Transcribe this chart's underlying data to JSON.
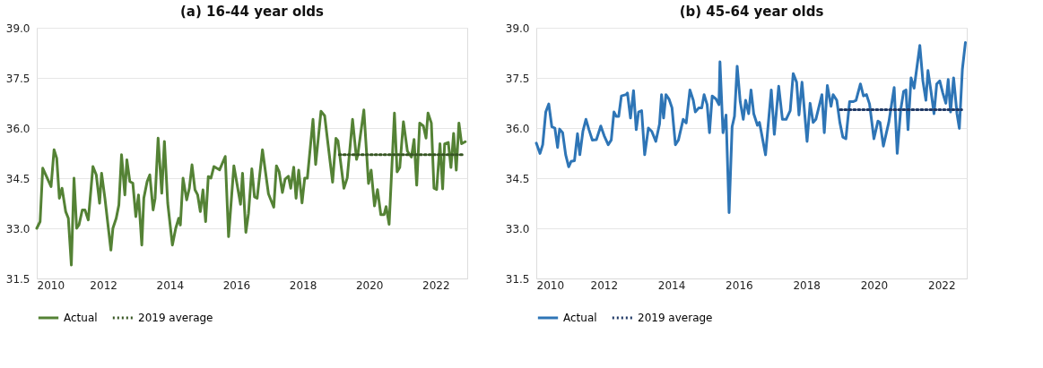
{
  "chart_data": [
    {
      "type": "line",
      "title": "(a) 16-44 year olds",
      "xlim": [
        2010,
        2022.95
      ],
      "xticks": [
        2010,
        2012,
        2014,
        2016,
        2018,
        2020,
        2022
      ],
      "ylim": [
        31.5,
        39.0
      ],
      "yticks": [
        {
          "value": 31.5,
          "label": "31.5"
        },
        {
          "value": 33.0,
          "label": "33.0"
        },
        {
          "value": 34.5,
          "label": "34.5"
        },
        {
          "value": 36.0,
          "label": "36.0"
        },
        {
          "value": 37.5,
          "label": "37.5"
        },
        {
          "value": 39.0,
          "label": "39.0"
        }
      ],
      "grid": "y",
      "legend": "bottom",
      "marker": "none",
      "series": [
        {
          "name": "Actual",
          "color": "#548235",
          "line_style": "solid",
          "x": [
            2010.0,
            2010.1,
            2010.18,
            2010.43,
            2010.52,
            2010.6,
            2010.68,
            2010.76,
            2010.87,
            2010.95,
            2011.04,
            2011.12,
            2011.2,
            2011.27,
            2011.37,
            2011.45,
            2011.55,
            2011.69,
            2011.79,
            2011.89,
            2011.95,
            2012.05,
            2012.23,
            2012.29,
            2012.39,
            2012.47,
            2012.55,
            2012.65,
            2012.71,
            2012.8,
            2012.89,
            2012.98,
            2013.06,
            2013.16,
            2013.22,
            2013.32,
            2013.4,
            2013.5,
            2013.56,
            2013.65,
            2013.76,
            2013.84,
            2013.94,
            2014.08,
            2014.18,
            2014.27,
            2014.32,
            2014.4,
            2014.51,
            2014.59,
            2014.67,
            2014.76,
            2014.84,
            2014.92,
            2015.0,
            2015.08,
            2015.16,
            2015.24,
            2015.33,
            2015.41,
            2015.5,
            2015.67,
            2015.77,
            2015.93,
            2016.13,
            2016.19,
            2016.29,
            2016.37,
            2016.47,
            2016.55,
            2016.63,
            2016.79,
            2016.97,
            2017.13,
            2017.21,
            2017.29,
            2017.39,
            2017.47,
            2017.57,
            2017.64,
            2017.73,
            2017.8,
            2017.88,
            2017.98,
            2018.06,
            2018.14,
            2018.31,
            2018.39,
            2018.55,
            2018.66,
            2018.76,
            2018.9,
            2019.0,
            2019.06,
            2019.24,
            2019.34,
            2019.5,
            2019.62,
            2019.66,
            2019.84,
            2019.98,
            2020.06,
            2020.16,
            2020.25,
            2020.35,
            2020.45,
            2020.51,
            2020.6,
            2020.76,
            2020.84,
            2020.92,
            2021.03,
            2021.15,
            2021.27,
            2021.35,
            2021.43,
            2021.52,
            2021.63,
            2021.71,
            2021.77,
            2021.87,
            2021.95,
            2022.03,
            2022.13,
            2022.21,
            2022.27,
            2022.38,
            2022.46,
            2022.54,
            2022.62,
            2022.7,
            2022.78,
            2022.89
          ],
          "values": [
            33.0,
            33.2,
            34.8,
            34.25,
            35.35,
            35.1,
            33.9,
            34.2,
            33.5,
            33.3,
            31.9,
            34.5,
            33.0,
            33.1,
            33.55,
            33.55,
            33.25,
            34.85,
            34.6,
            33.75,
            34.65,
            33.9,
            32.35,
            33.0,
            33.3,
            33.7,
            35.2,
            34.0,
            35.05,
            34.4,
            34.35,
            33.35,
            34.0,
            32.5,
            33.9,
            34.4,
            34.6,
            33.55,
            33.9,
            35.7,
            34.05,
            35.6,
            33.75,
            32.5,
            33.0,
            33.3,
            33.1,
            34.5,
            33.85,
            34.2,
            34.9,
            34.15,
            34.0,
            33.5,
            34.15,
            33.2,
            34.55,
            34.5,
            34.85,
            34.8,
            34.75,
            35.15,
            32.75,
            34.87,
            33.72,
            34.65,
            32.88,
            33.45,
            34.78,
            33.94,
            33.9,
            35.35,
            34.03,
            33.63,
            34.87,
            34.7,
            34.07,
            34.47,
            34.56,
            34.2,
            34.83,
            33.9,
            34.74,
            33.76,
            34.5,
            34.5,
            36.26,
            34.91,
            36.5,
            36.37,
            35.53,
            34.38,
            35.69,
            35.62,
            34.2,
            34.51,
            36.26,
            35.06,
            35.22,
            36.54,
            34.34,
            34.74,
            33.67,
            34.16,
            33.41,
            33.41,
            33.65,
            33.12,
            36.45,
            34.69,
            34.82,
            36.19,
            35.31,
            35.13,
            35.66,
            34.29,
            36.15,
            36.06,
            35.7,
            36.45,
            36.15,
            34.2,
            34.16,
            35.53,
            34.18,
            35.53,
            35.57,
            34.82,
            35.84,
            34.74,
            36.15,
            35.53,
            35.59
          ]
        },
        {
          "name": "2019 average",
          "color": "#375623",
          "line_style": "dotted",
          "x": [
            2019.1,
            2022.8
          ],
          "values": [
            35.2,
            35.2
          ]
        }
      ]
    },
    {
      "type": "line",
      "title": "(b) 45-64 year olds",
      "xlim": [
        2010,
        2022.75
      ],
      "xticks": [
        2010,
        2012,
        2014,
        2016,
        2018,
        2020,
        2022
      ],
      "ylim": [
        31.5,
        39.0
      ],
      "yticks": [
        {
          "value": 31.5,
          "label": "31.5"
        },
        {
          "value": 33.0,
          "label": "33.0"
        },
        {
          "value": 34.5,
          "label": "34.5"
        },
        {
          "value": 36.0,
          "label": "36.0"
        },
        {
          "value": 37.5,
          "label": "37.5"
        },
        {
          "value": 39.0,
          "label": "39.0"
        }
      ],
      "grid": "y",
      "legend": "bottom",
      "marker": "none",
      "series": [
        {
          "name": "Actual",
          "color": "#2e75b6",
          "line_style": "solid",
          "x": [
            2010.0,
            2010.11,
            2010.19,
            2010.28,
            2010.37,
            2010.46,
            2010.55,
            2010.63,
            2010.69,
            2010.78,
            2010.87,
            2010.96,
            2011.03,
            2011.13,
            2011.22,
            2011.29,
            2011.38,
            2011.47,
            2011.56,
            2011.66,
            2011.78,
            2011.91,
            2012.01,
            2012.13,
            2012.22,
            2012.3,
            2012.37,
            2012.44,
            2012.52,
            2012.66,
            2012.7,
            2012.79,
            2012.88,
            2012.96,
            2013.03,
            2013.12,
            2013.21,
            2013.32,
            2013.42,
            2013.54,
            2013.65,
            2013.71,
            2013.77,
            2013.84,
            2013.93,
            2014.02,
            2014.12,
            2014.21,
            2014.35,
            2014.44,
            2014.55,
            2014.65,
            2014.71,
            2014.81,
            2014.9,
            2014.97,
            2015.06,
            2015.13,
            2015.21,
            2015.32,
            2015.41,
            2015.44,
            2015.53,
            2015.62,
            2015.71,
            2015.8,
            2015.87,
            2015.95,
            2016.04,
            2016.13,
            2016.2,
            2016.29,
            2016.36,
            2016.44,
            2016.55,
            2016.61,
            2016.79,
            2016.96,
            2017.05,
            2017.18,
            2017.29,
            2017.4,
            2017.52,
            2017.61,
            2017.71,
            2017.78,
            2017.87,
            2018.02,
            2018.11,
            2018.2,
            2018.28,
            2018.46,
            2018.53,
            2018.62,
            2018.73,
            2018.79,
            2018.9,
            2018.99,
            2019.08,
            2019.17,
            2019.28,
            2019.38,
            2019.47,
            2019.6,
            2019.69,
            2019.78,
            2019.87,
            2020.0,
            2020.12,
            2020.18,
            2020.28,
            2020.44,
            2020.6,
            2020.69,
            2020.79,
            2020.88,
            2020.95,
            2021.01,
            2021.1,
            2021.19,
            2021.36,
            2021.45,
            2021.54,
            2021.6,
            2021.69,
            2021.78,
            2021.86,
            2021.95,
            2022.04,
            2022.13,
            2022.2,
            2022.27,
            2022.36,
            2022.46,
            2022.53,
            2022.62,
            2022.71
          ],
          "values": [
            35.55,
            35.24,
            35.5,
            36.48,
            36.72,
            36.04,
            36.0,
            35.42,
            35.97,
            35.86,
            35.2,
            34.84,
            35.0,
            35.02,
            35.83,
            35.2,
            35.9,
            36.26,
            35.95,
            35.64,
            35.65,
            36.06,
            35.77,
            35.5,
            35.64,
            36.48,
            36.35,
            36.35,
            36.96,
            37.0,
            37.05,
            36.3,
            37.12,
            35.95,
            36.48,
            36.52,
            35.2,
            36.0,
            35.9,
            35.6,
            36.12,
            37.0,
            36.3,
            37.0,
            36.87,
            36.6,
            35.5,
            35.64,
            36.26,
            36.15,
            37.14,
            36.83,
            36.48,
            36.6,
            36.6,
            37.0,
            36.7,
            35.86,
            36.96,
            36.87,
            36.7,
            37.98,
            35.86,
            36.39,
            33.47,
            36.04,
            36.35,
            37.85,
            36.79,
            36.26,
            36.83,
            36.43,
            37.14,
            36.43,
            36.08,
            36.17,
            35.2,
            37.14,
            35.81,
            37.25,
            36.26,
            36.26,
            36.52,
            37.63,
            37.37,
            36.39,
            37.37,
            35.6,
            36.74,
            36.17,
            36.26,
            37.0,
            35.86,
            37.27,
            36.65,
            37.0,
            36.83,
            36.17,
            35.73,
            35.68,
            36.79,
            36.79,
            36.83,
            37.32,
            36.96,
            37.0,
            36.72,
            35.68,
            36.21,
            36.17,
            35.46,
            36.17,
            37.21,
            35.24,
            36.52,
            37.1,
            37.14,
            35.95,
            37.5,
            37.19,
            38.47,
            37.41,
            36.83,
            37.72,
            37.1,
            36.43,
            37.32,
            37.41,
            37.05,
            36.74,
            37.45,
            36.48,
            37.5,
            36.43,
            35.99,
            37.76,
            38.56
          ]
        },
        {
          "name": "2019 average",
          "color": "#1f3864",
          "line_style": "dotted",
          "x": [
            2019.0,
            2022.6
          ],
          "values": [
            36.55,
            36.55
          ]
        }
      ]
    }
  ]
}
